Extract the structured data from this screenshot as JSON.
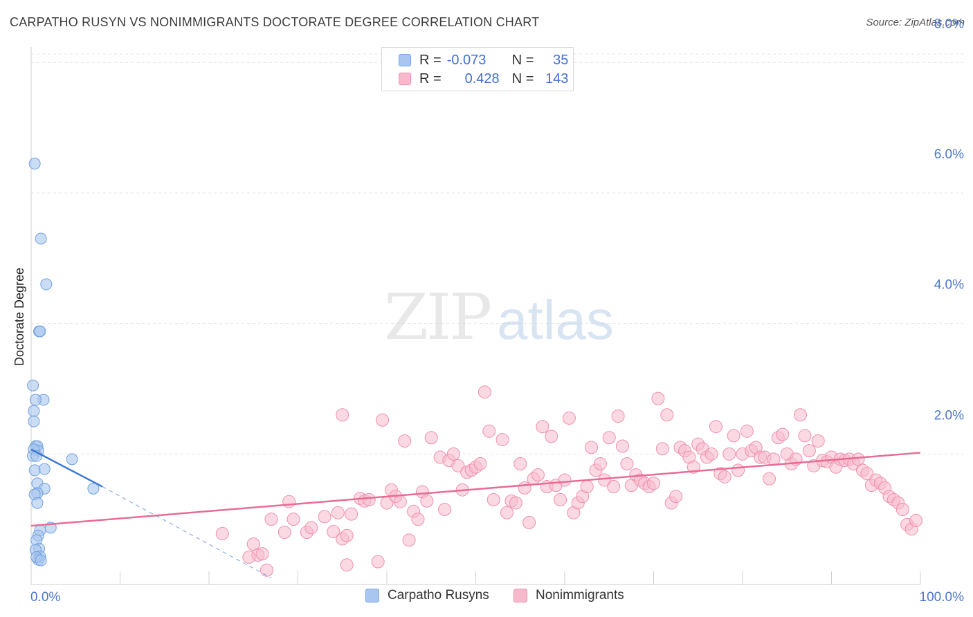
{
  "title": "CARPATHO RUSYN VS NONIMMIGRANTS DOCTORATE DEGREE CORRELATION CHART",
  "source": "Source: ZipAtlas.com",
  "watermark": {
    "zip": "ZIP",
    "atlas": "atlas"
  },
  "legend": {
    "rows": [
      {
        "r_label": "R =",
        "r_value": "-0.073",
        "n_label": "N =",
        "n_value": "35",
        "color": "#a8c6ef",
        "border": "#7aa6e0"
      },
      {
        "r_label": "R =",
        "r_value": "0.428",
        "n_label": "N =",
        "n_value": "143",
        "color": "#f7b9cc",
        "border": "#ee8fae"
      }
    ]
  },
  "bottom_legend": [
    {
      "label": "Carpatho Rusyns",
      "color": "#a8c6ef",
      "border": "#7aa6e0"
    },
    {
      "label": "Nonimmigrants",
      "color": "#f7b9cc",
      "border": "#ee8fae"
    }
  ],
  "chart_data": {
    "type": "scatter",
    "title": "CARPATHO RUSYN VS NONIMMIGRANTS DOCTORATE DEGREE CORRELATION CHART",
    "xlabel": "",
    "ylabel": "Doctorate Degree",
    "xlim": [
      0,
      100
    ],
    "ylim": [
      0,
      8.3
    ],
    "x_tick_labels": [
      "0.0%",
      "100.0%"
    ],
    "y_ticks": [
      2.0,
      4.0,
      6.0,
      8.0
    ],
    "y_tick_labels": [
      "2.0%",
      "4.0%",
      "6.0%",
      "8.0%"
    ],
    "grid": true,
    "series": [
      {
        "name": "Carpatho Rusyns",
        "color": "#a8c6ef",
        "stroke": "#6f9fdc",
        "trend": {
          "x0": 0,
          "y0": 2.07,
          "x1": 8,
          "y1": 1.5,
          "dash_x1": 27,
          "dash_y1": 0.1,
          "color": "#3a78d4"
        },
        "points": [
          [
            0.4,
            6.45
          ],
          [
            1.1,
            5.3
          ],
          [
            1.7,
            4.6
          ],
          [
            0.9,
            3.88
          ],
          [
            1.0,
            3.88
          ],
          [
            0.2,
            3.05
          ],
          [
            1.4,
            2.83
          ],
          [
            0.5,
            2.83
          ],
          [
            0.3,
            2.66
          ],
          [
            0.3,
            2.5
          ],
          [
            0.5,
            2.12
          ],
          [
            0.7,
            2.12
          ],
          [
            0.8,
            2.05
          ],
          [
            0.3,
            2.07
          ],
          [
            0.2,
            1.97
          ],
          [
            0.6,
            1.97
          ],
          [
            4.6,
            1.92
          ],
          [
            0.4,
            1.75
          ],
          [
            1.5,
            1.77
          ],
          [
            0.7,
            1.55
          ],
          [
            1.5,
            1.47
          ],
          [
            7.0,
            1.47
          ],
          [
            0.7,
            1.4
          ],
          [
            0.4,
            1.38
          ],
          [
            0.7,
            1.25
          ],
          [
            2.2,
            0.87
          ],
          [
            1.0,
            0.83
          ],
          [
            0.8,
            0.75
          ],
          [
            0.6,
            0.68
          ],
          [
            0.9,
            0.55
          ],
          [
            0.5,
            0.53
          ],
          [
            1.0,
            0.43
          ],
          [
            0.8,
            0.38
          ],
          [
            0.6,
            0.42
          ],
          [
            1.1,
            0.37
          ]
        ]
      },
      {
        "name": "Nonimmigrants",
        "color": "#f7b9cc",
        "stroke": "#ee8fae",
        "trend": {
          "x0": 0,
          "y0": 0.9,
          "x1": 100,
          "y1": 2.02,
          "color": "#e86b96"
        },
        "points": [
          [
            21.5,
            0.78
          ],
          [
            25.0,
            0.62
          ],
          [
            25.5,
            0.45
          ],
          [
            26.0,
            0.47
          ],
          [
            26.5,
            0.22
          ],
          [
            24.5,
            0.42
          ],
          [
            27.0,
            1.0
          ],
          [
            28.5,
            0.8
          ],
          [
            29.5,
            1.0
          ],
          [
            29.0,
            1.27
          ],
          [
            31.0,
            0.8
          ],
          [
            31.5,
            0.87
          ],
          [
            33.0,
            1.04
          ],
          [
            34.0,
            0.81
          ],
          [
            34.5,
            1.1
          ],
          [
            35.0,
            0.7
          ],
          [
            35.5,
            0.75
          ],
          [
            35.5,
            0.3
          ],
          [
            36.0,
            1.08
          ],
          [
            35.0,
            2.6
          ],
          [
            37.0,
            1.32
          ],
          [
            37.5,
            1.28
          ],
          [
            38.0,
            1.3
          ],
          [
            39.0,
            0.35
          ],
          [
            39.5,
            2.52
          ],
          [
            40.0,
            1.25
          ],
          [
            40.5,
            1.45
          ],
          [
            41.0,
            1.35
          ],
          [
            41.5,
            1.27
          ],
          [
            42.0,
            2.2
          ],
          [
            42.5,
            0.68
          ],
          [
            43.0,
            1.12
          ],
          [
            43.5,
            1.0
          ],
          [
            44.0,
            1.42
          ],
          [
            44.5,
            1.28
          ],
          [
            45.0,
            2.25
          ],
          [
            46.0,
            1.95
          ],
          [
            46.5,
            1.15
          ],
          [
            47.0,
            1.9
          ],
          [
            47.5,
            2.0
          ],
          [
            48.0,
            1.82
          ],
          [
            48.5,
            1.45
          ],
          [
            49.0,
            1.72
          ],
          [
            49.5,
            1.75
          ],
          [
            50.0,
            1.8
          ],
          [
            50.5,
            1.85
          ],
          [
            51.0,
            2.95
          ],
          [
            51.5,
            2.35
          ],
          [
            52.0,
            1.3
          ],
          [
            53.0,
            2.22
          ],
          [
            53.5,
            1.1
          ],
          [
            54.0,
            1.28
          ],
          [
            54.5,
            1.25
          ],
          [
            55.0,
            1.85
          ],
          [
            55.5,
            1.48
          ],
          [
            56.0,
            0.95
          ],
          [
            56.5,
            1.62
          ],
          [
            57.0,
            1.68
          ],
          [
            57.5,
            2.42
          ],
          [
            58.0,
            1.5
          ],
          [
            58.5,
            2.27
          ],
          [
            59.0,
            1.52
          ],
          [
            59.5,
            1.3
          ],
          [
            60.0,
            1.6
          ],
          [
            60.5,
            2.55
          ],
          [
            61.0,
            1.1
          ],
          [
            61.5,
            1.25
          ],
          [
            62.0,
            1.35
          ],
          [
            62.5,
            1.5
          ],
          [
            63.0,
            2.1
          ],
          [
            63.5,
            1.75
          ],
          [
            64.0,
            1.85
          ],
          [
            64.5,
            1.6
          ],
          [
            65.0,
            2.25
          ],
          [
            65.5,
            1.5
          ],
          [
            66.0,
            2.58
          ],
          [
            66.5,
            2.12
          ],
          [
            67.0,
            1.85
          ],
          [
            67.5,
            1.52
          ],
          [
            68.0,
            1.68
          ],
          [
            68.5,
            1.6
          ],
          [
            69.0,
            1.55
          ],
          [
            69.5,
            1.5
          ],
          [
            70.0,
            1.55
          ],
          [
            70.5,
            2.85
          ],
          [
            71.0,
            2.08
          ],
          [
            71.5,
            2.6
          ],
          [
            72.0,
            1.25
          ],
          [
            72.5,
            1.35
          ],
          [
            73.0,
            2.1
          ],
          [
            73.5,
            2.05
          ],
          [
            74.0,
            1.95
          ],
          [
            74.5,
            1.8
          ],
          [
            75.0,
            2.15
          ],
          [
            75.5,
            2.08
          ],
          [
            76.0,
            1.95
          ],
          [
            76.5,
            2.0
          ],
          [
            77.0,
            2.42
          ],
          [
            77.5,
            1.7
          ],
          [
            78.0,
            1.65
          ],
          [
            78.5,
            2.0
          ],
          [
            79.0,
            2.28
          ],
          [
            79.5,
            1.75
          ],
          [
            80.0,
            2.0
          ],
          [
            80.5,
            2.35
          ],
          [
            81.0,
            2.05
          ],
          [
            81.5,
            2.1
          ],
          [
            82.0,
            1.95
          ],
          [
            82.5,
            1.95
          ],
          [
            83.0,
            1.62
          ],
          [
            83.5,
            1.92
          ],
          [
            84.0,
            2.25
          ],
          [
            84.5,
            2.3
          ],
          [
            85.0,
            2.0
          ],
          [
            85.5,
            1.85
          ],
          [
            86.0,
            1.92
          ],
          [
            86.5,
            2.6
          ],
          [
            87.0,
            2.28
          ],
          [
            87.5,
            2.05
          ],
          [
            88.0,
            1.82
          ],
          [
            88.5,
            2.2
          ],
          [
            89.0,
            1.9
          ],
          [
            89.5,
            1.88
          ],
          [
            90.0,
            1.95
          ],
          [
            90.5,
            1.8
          ],
          [
            91.0,
            1.92
          ],
          [
            91.5,
            1.9
          ],
          [
            92.0,
            1.92
          ],
          [
            92.5,
            1.85
          ],
          [
            93.0,
            1.92
          ],
          [
            93.5,
            1.75
          ],
          [
            94.0,
            1.7
          ],
          [
            94.5,
            1.52
          ],
          [
            95.0,
            1.6
          ],
          [
            95.5,
            1.55
          ],
          [
            96.0,
            1.48
          ],
          [
            96.5,
            1.35
          ],
          [
            97.0,
            1.3
          ],
          [
            97.5,
            1.25
          ],
          [
            98.0,
            1.15
          ],
          [
            98.5,
            0.92
          ],
          [
            99.0,
            0.85
          ],
          [
            99.5,
            0.98
          ]
        ]
      }
    ]
  }
}
